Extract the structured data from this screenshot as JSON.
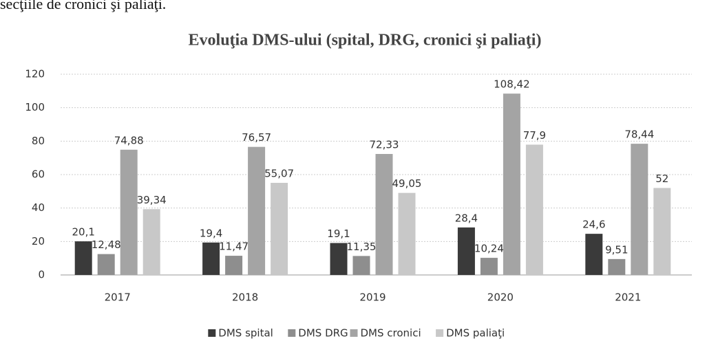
{
  "document": {
    "text": "secţiile de cronici şi paliaţi."
  },
  "chart_data": {
    "type": "bar",
    "title": "Evoluţia DMS-ului (spital, DRG, cronici şi paliaţi)",
    "categories": [
      "2017",
      "2018",
      "2019",
      "2020",
      "2021"
    ],
    "series": [
      {
        "name": "DMS spital",
        "color": "#3a3a3a",
        "values": [
          20.1,
          19.4,
          19.1,
          28.4,
          24.6
        ],
        "value_labels": [
          "20,1",
          "19,4",
          "19,1",
          "28,4",
          "24,6"
        ]
      },
      {
        "name": "DMS DRG",
        "color": "#8e8e8e",
        "values": [
          12.48,
          11.47,
          11.35,
          10.24,
          9.51
        ],
        "value_labels": [
          "12,48",
          "11,47",
          "11,35",
          "10,24",
          "9,51"
        ]
      },
      {
        "name": "DMS cronici",
        "color": "#a4a4a4",
        "values": [
          74.88,
          76.57,
          72.33,
          108.42,
          78.44
        ],
        "value_labels": [
          "74,88",
          "76,57",
          "72,33",
          "108,42",
          "78,44"
        ]
      },
      {
        "name": "DMS paliaţi",
        "color": "#c8c8c8",
        "values": [
          39.34,
          55.07,
          49.05,
          77.9,
          52
        ],
        "value_labels": [
          "39,34",
          "55,07",
          "49,05",
          "77,9",
          "52"
        ]
      }
    ],
    "ylim": [
      0,
      120
    ],
    "yticks": [
      0,
      20,
      40,
      60,
      80,
      100,
      120
    ],
    "grid": true,
    "legend": "bottom"
  }
}
